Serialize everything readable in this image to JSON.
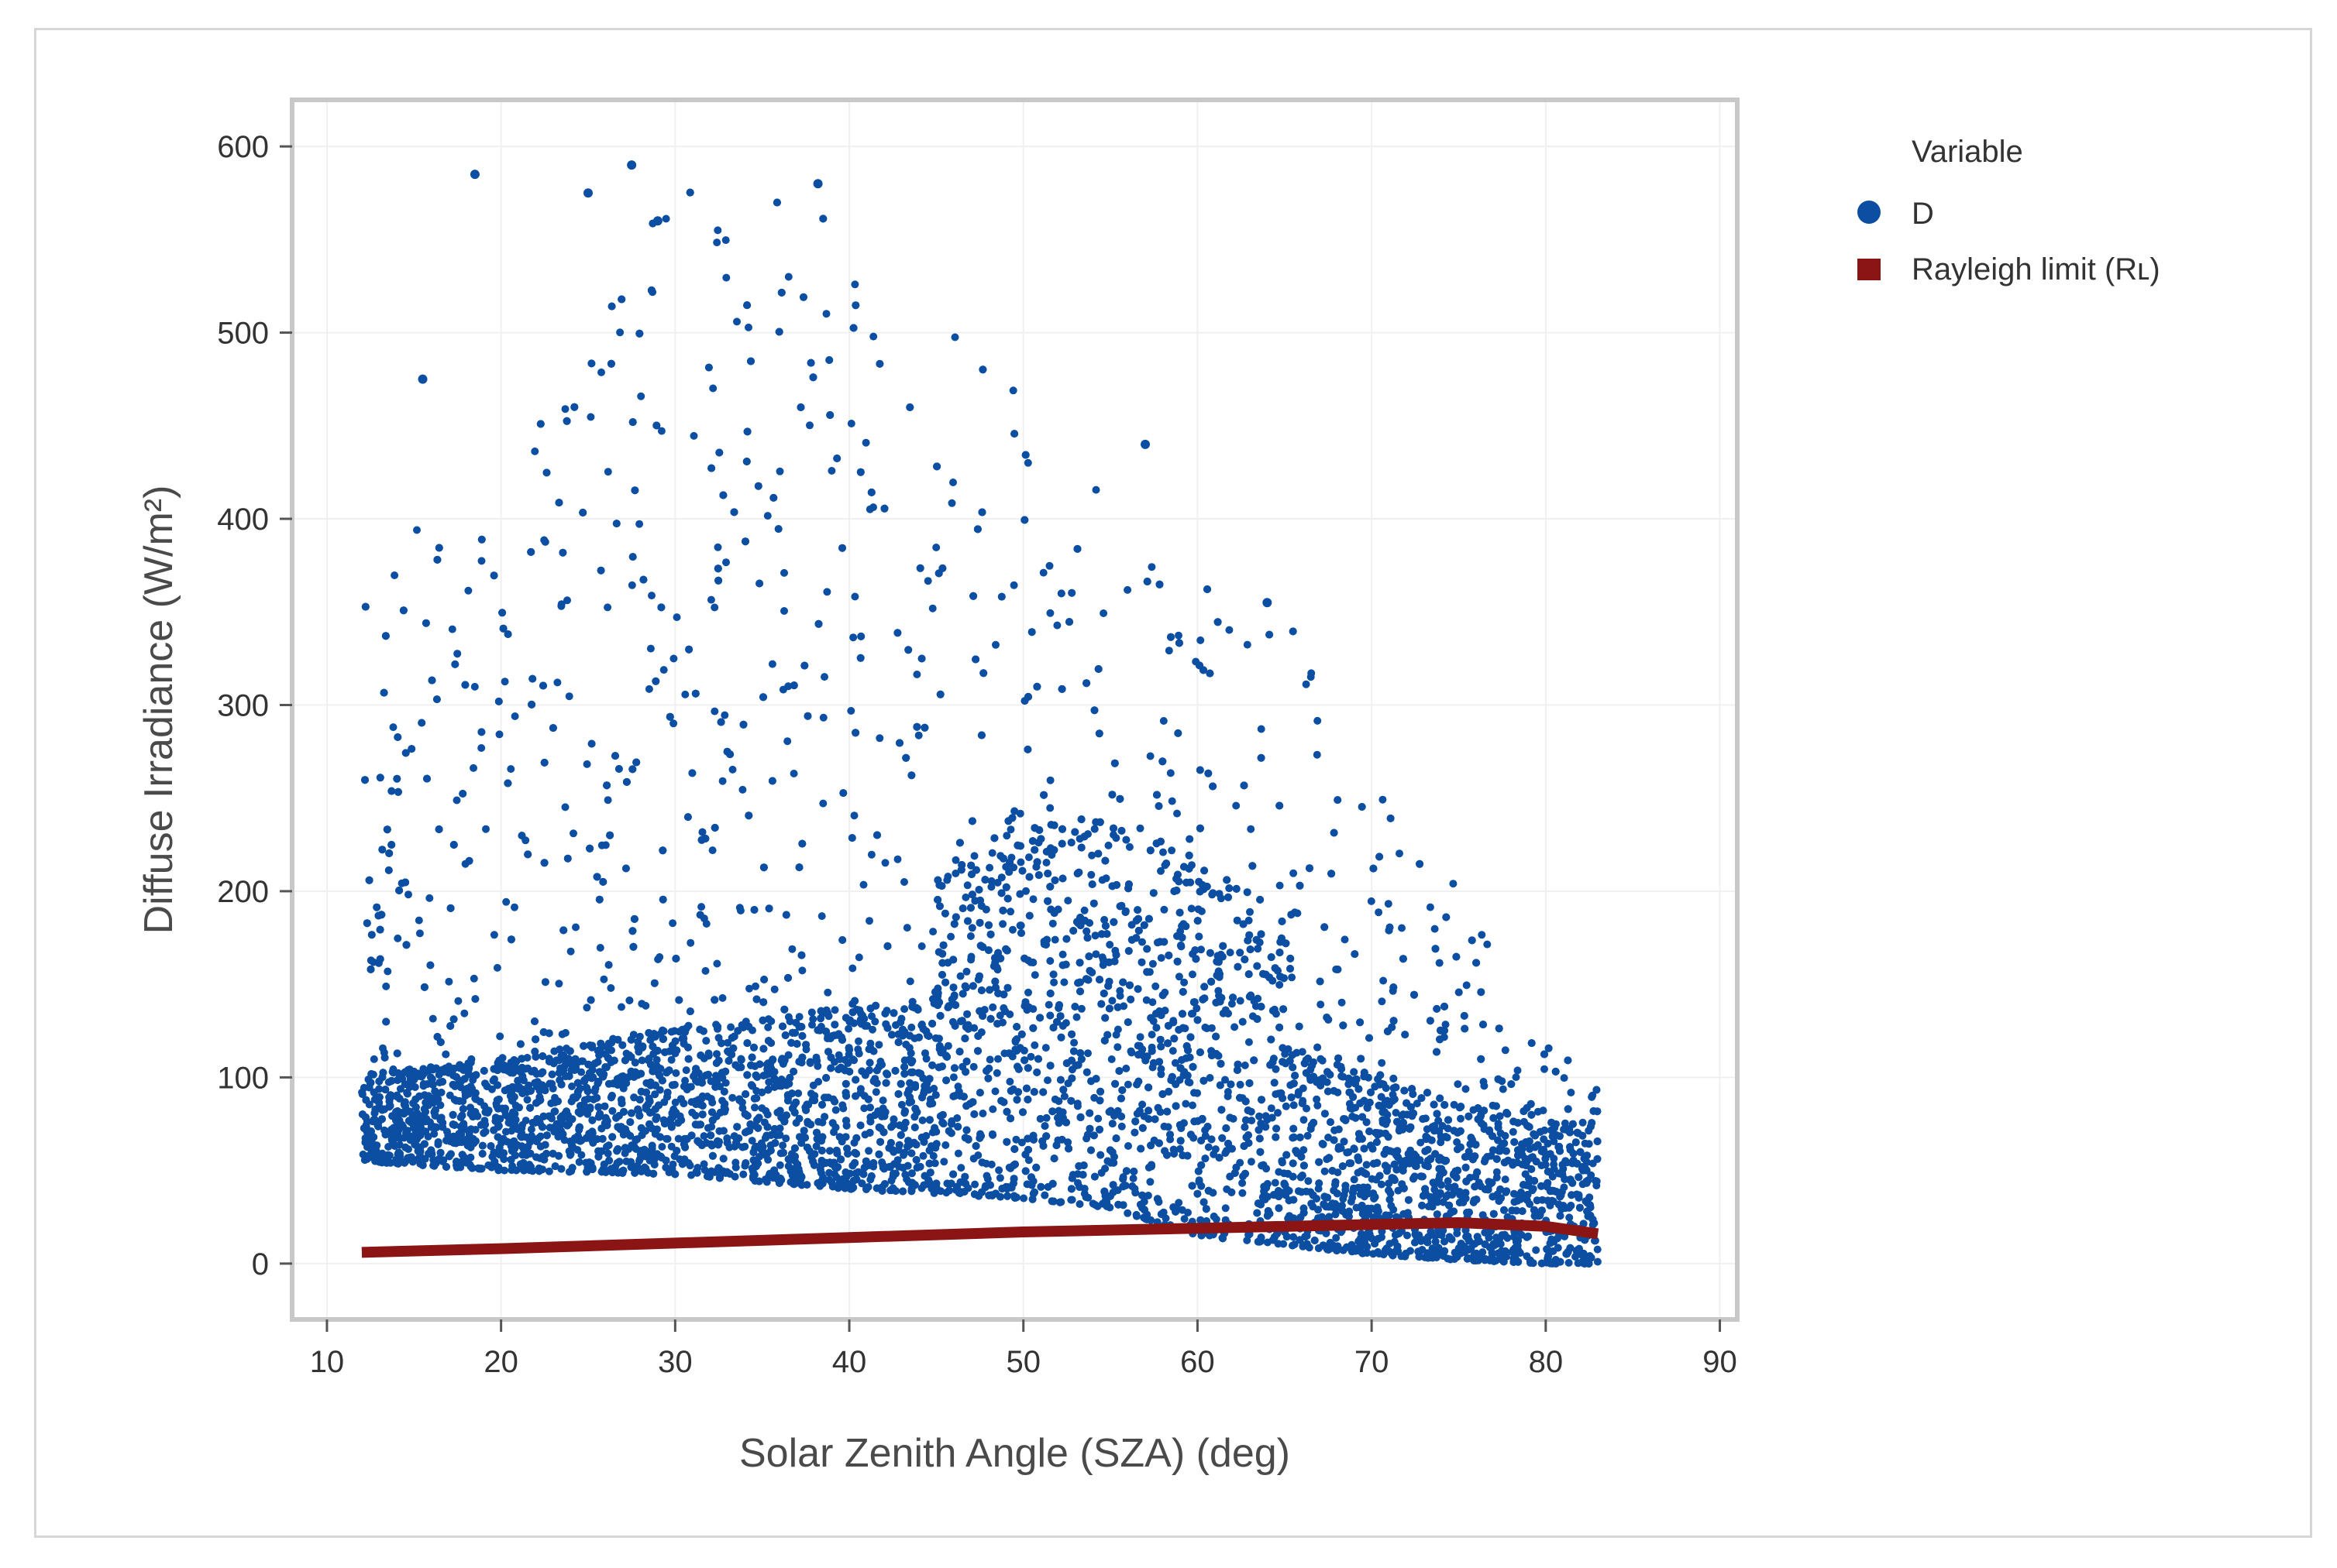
{
  "chart_data": {
    "type": "scatter",
    "title": "",
    "xlabel": "Solar Zenith Angle (SZA) (deg)",
    "ylabel": "Diffuse Irradiance (W/m²)",
    "xlim": [
      8,
      91
    ],
    "ylim": [
      -30,
      625
    ],
    "xticks": [
      10,
      20,
      30,
      40,
      50,
      60,
      70,
      80,
      90
    ],
    "yticks": [
      0,
      100,
      200,
      300,
      400,
      500,
      600
    ],
    "grid": true,
    "legend": {
      "title": "Variable",
      "position": "right",
      "entries": [
        {
          "label": "D",
          "marker": "circle",
          "color": "#0b4ea2"
        },
        {
          "label": "Rayleigh limit (Rʟ)",
          "marker": "square",
          "color": "#8b1414"
        }
      ]
    },
    "series": [
      {
        "name": "D",
        "kind": "scatter",
        "color": "#0b4ea2",
        "x_range": [
          12,
          83
        ],
        "note": "dense cloud of measurements; lower envelope and upper envelope (data units) below",
        "envelope_x": [
          12,
          20,
          30,
          40,
          50,
          55,
          60,
          65,
          70,
          75,
          80,
          83
        ],
        "envelope_lower": [
          55,
          50,
          48,
          40,
          35,
          30,
          15,
          10,
          5,
          2,
          0,
          0
        ],
        "envelope_upper": [
          380,
          420,
          590,
          580,
          465,
          440,
          400,
          355,
          270,
          200,
          120,
          95
        ],
        "outliers": [
          [
            18.5,
            585
          ],
          [
            27.5,
            590
          ],
          [
            38.2,
            580
          ],
          [
            25,
            575
          ],
          [
            29,
            560
          ],
          [
            15.5,
            475
          ],
          [
            57,
            440
          ],
          [
            64,
            355
          ]
        ]
      },
      {
        "name": "Rayleigh limit (Rʟ)",
        "kind": "line",
        "color": "#8b1414",
        "x": [
          12,
          20,
          30,
          40,
          50,
          60,
          70,
          75,
          80,
          83
        ],
        "y": [
          6,
          8,
          11,
          14,
          17,
          19,
          21,
          22,
          20,
          16
        ]
      }
    ]
  }
}
